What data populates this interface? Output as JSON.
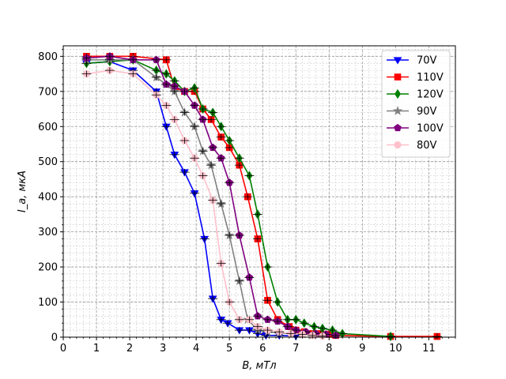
{
  "chart_data": {
    "type": "line",
    "title": "",
    "xlabel": "B, мТл",
    "ylabel": "I_a, мкА",
    "xlim": [
      0,
      11.8
    ],
    "ylim": [
      0,
      830
    ],
    "xticks": [
      0,
      1,
      2,
      3,
      4,
      5,
      6,
      7,
      8,
      9,
      10,
      11
    ],
    "yticks": [
      0,
      100,
      200,
      300,
      400,
      500,
      600,
      700,
      800
    ],
    "grid": true,
    "minor_grid": true,
    "legend_position": "top-right",
    "series": [
      {
        "name": "70V",
        "color": "#0000ff",
        "marker": "triangle-down",
        "x": [
          0.7,
          1.4,
          2.1,
          2.8,
          3.1,
          3.35,
          3.65,
          3.95,
          4.25,
          4.5,
          4.75,
          4.95,
          5.3,
          5.6,
          5.85,
          6.1,
          6.5,
          7.0
        ],
        "y": [
          780,
          785,
          760,
          700,
          600,
          520,
          470,
          410,
          280,
          110,
          50,
          40,
          20,
          20,
          10,
          5,
          5,
          3
        ]
      },
      {
        "name": "110V",
        "color": "#ff0000",
        "marker": "square",
        "x": [
          0.7,
          1.4,
          2.1,
          3.1,
          3.35,
          3.65,
          3.95,
          4.2,
          4.45,
          4.75,
          5.0,
          5.3,
          5.55,
          5.85,
          6.15,
          6.45,
          6.8,
          7.0,
          7.25,
          7.5,
          7.75,
          8.0,
          8.2,
          9.85,
          11.25
        ],
        "y": [
          800,
          800,
          800,
          790,
          710,
          700,
          700,
          650,
          620,
          570,
          540,
          490,
          400,
          280,
          105,
          50,
          30,
          20,
          15,
          10,
          10,
          8,
          5,
          2,
          2
        ]
      },
      {
        "name": "120V",
        "color": "#008000",
        "marker": "diamond",
        "x": [
          0.7,
          1.4,
          2.1,
          2.8,
          3.1,
          3.35,
          3.65,
          3.95,
          4.2,
          4.5,
          4.75,
          5.0,
          5.3,
          5.6,
          5.85,
          6.15,
          6.45,
          6.75,
          7.0,
          7.25,
          7.55,
          7.8,
          8.1,
          8.4,
          9.85
        ],
        "y": [
          780,
          785,
          790,
          760,
          750,
          730,
          700,
          710,
          650,
          640,
          600,
          560,
          510,
          460,
          350,
          200,
          100,
          50,
          50,
          40,
          30,
          25,
          20,
          10,
          2
        ]
      },
      {
        "name": "90V",
        "color": "#808080",
        "marker": "star",
        "x": [
          0.7,
          1.4,
          2.1,
          2.8,
          3.1,
          3.35,
          3.65,
          3.95,
          4.2,
          4.45,
          4.75,
          5.0,
          5.3,
          5.55,
          5.85,
          6.15,
          6.5,
          6.85,
          7.2,
          7.5
        ],
        "y": [
          790,
          790,
          790,
          740,
          720,
          700,
          640,
          600,
          530,
          490,
          380,
          290,
          160,
          50,
          20,
          15,
          12,
          10,
          8,
          5
        ]
      },
      {
        "name": "100V",
        "color": "#800080",
        "marker": "pentagon",
        "x": [
          0.7,
          1.4,
          2.1,
          2.8,
          3.1,
          3.35,
          3.65,
          3.95,
          4.2,
          4.5,
          4.75,
          5.0,
          5.3,
          5.6,
          5.85,
          6.15,
          6.45,
          6.75,
          7.0,
          7.3,
          7.6,
          7.9,
          8.2
        ],
        "y": [
          795,
          800,
          790,
          790,
          720,
          715,
          700,
          660,
          620,
          540,
          510,
          440,
          290,
          170,
          60,
          50,
          45,
          30,
          20,
          15,
          10,
          8,
          5
        ]
      },
      {
        "name": "80V",
        "color": "#ffc0cb",
        "marker": "circle",
        "x": [
          0.7,
          1.4,
          2.1,
          2.8,
          3.1,
          3.35,
          3.65,
          3.95,
          4.2,
          4.5,
          4.75,
          5.0,
          5.3,
          5.6,
          5.85,
          6.15,
          6.5,
          6.85,
          7.2,
          7.5,
          7.8
        ],
        "y": [
          750,
          760,
          750,
          690,
          660,
          620,
          560,
          510,
          460,
          390,
          210,
          100,
          50,
          50,
          30,
          20,
          15,
          10,
          8,
          5,
          3
        ]
      }
    ]
  }
}
